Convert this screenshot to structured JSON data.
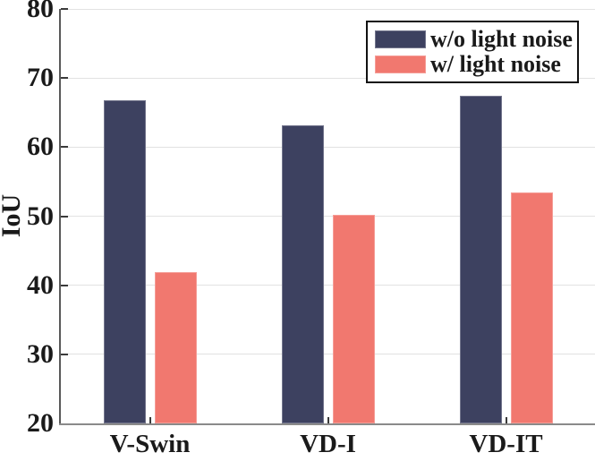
{
  "chart_data": {
    "type": "bar",
    "title": "",
    "xlabel": "",
    "ylabel": "IoU",
    "categories": [
      "V-Swin",
      "VD-I",
      "VD-IT"
    ],
    "series": [
      {
        "name": "w/o light noise",
        "color": "#3d4160",
        "values": [
          66.8,
          63.1,
          67.4
        ]
      },
      {
        "name": "w/ light noise",
        "color": "#f1786f",
        "values": [
          41.9,
          50.2,
          53.5
        ]
      }
    ],
    "ylim": [
      20,
      80
    ],
    "yticks": [
      20,
      30,
      40,
      50,
      60,
      70,
      80
    ],
    "grid": "horizontal",
    "legend_position": "top-right"
  },
  "colors": {
    "background": "#ffffff",
    "gridline": "#e2e2e2",
    "axis_spine": "#595959",
    "axis_bottom": "#8a8a8a",
    "tick_mark": "#3a3a3a",
    "text": "#1a1a1a",
    "legend_border": "#111111"
  }
}
